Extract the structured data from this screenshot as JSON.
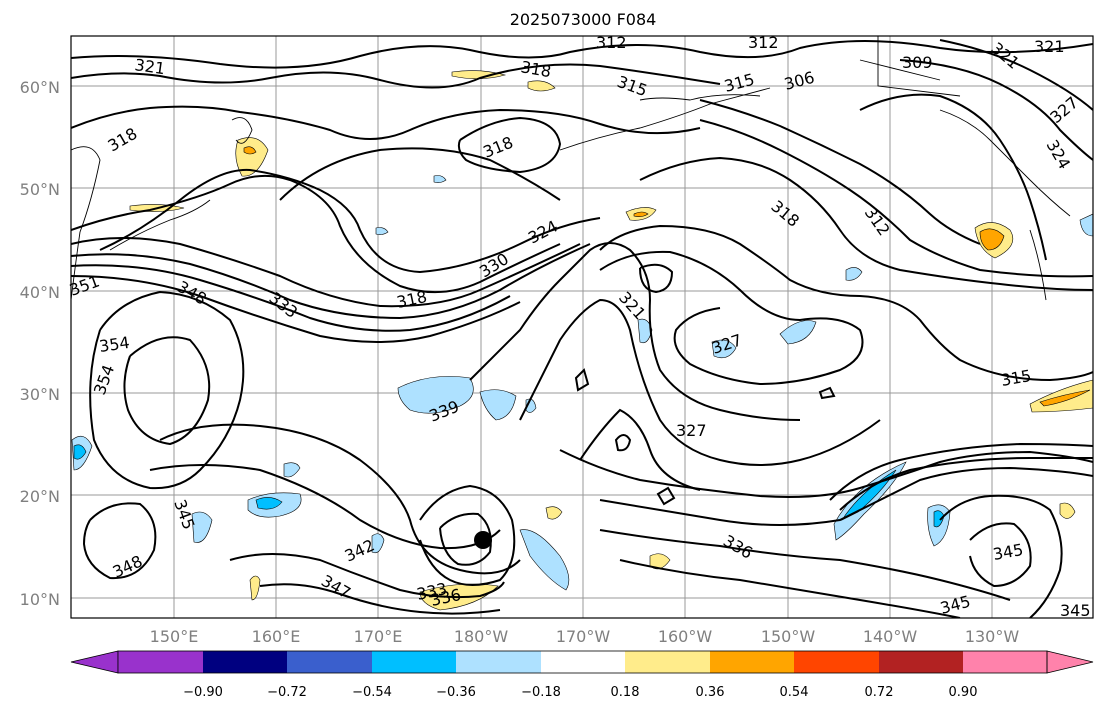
{
  "title": "2025073000 F084",
  "map": {
    "lat_labels": [
      "60°N",
      "50°N",
      "40°N",
      "30°N",
      "20°N",
      "10°N"
    ],
    "lon_labels": [
      "150°E",
      "160°E",
      "170°E",
      "180°W",
      "170°W",
      "160°W",
      "150°W",
      "140°W",
      "130°W"
    ],
    "gridlines": true,
    "contour_labels": [
      "321",
      "312",
      "312",
      "321",
      "315",
      "309",
      "321",
      "306",
      "315",
      "318",
      "327",
      "324",
      "318",
      "318",
      "312",
      "318",
      "324",
      "330",
      "321",
      "351",
      "348",
      "333",
      "318",
      "354",
      "327",
      "354",
      "315",
      "339",
      "327",
      "336",
      "345",
      "345",
      "342",
      "347",
      "333",
      "336",
      "348",
      "345",
      "345"
    ],
    "marker": "black-dot"
  },
  "colorbar": {
    "ticks": [
      "−0.90",
      "−0.72",
      "−0.54",
      "−0.36",
      "−0.18",
      "0.18",
      "0.36",
      "0.54",
      "0.72",
      "0.90"
    ],
    "colors": [
      "#9932CC",
      "#000080",
      "#3A5FCD",
      "#00BFFF",
      "#AEE1FF",
      "#FFFFFF",
      "#FFEC8B",
      "#FFA500",
      "#FF4500",
      "#B22222",
      "#FF82AB"
    ]
  }
}
